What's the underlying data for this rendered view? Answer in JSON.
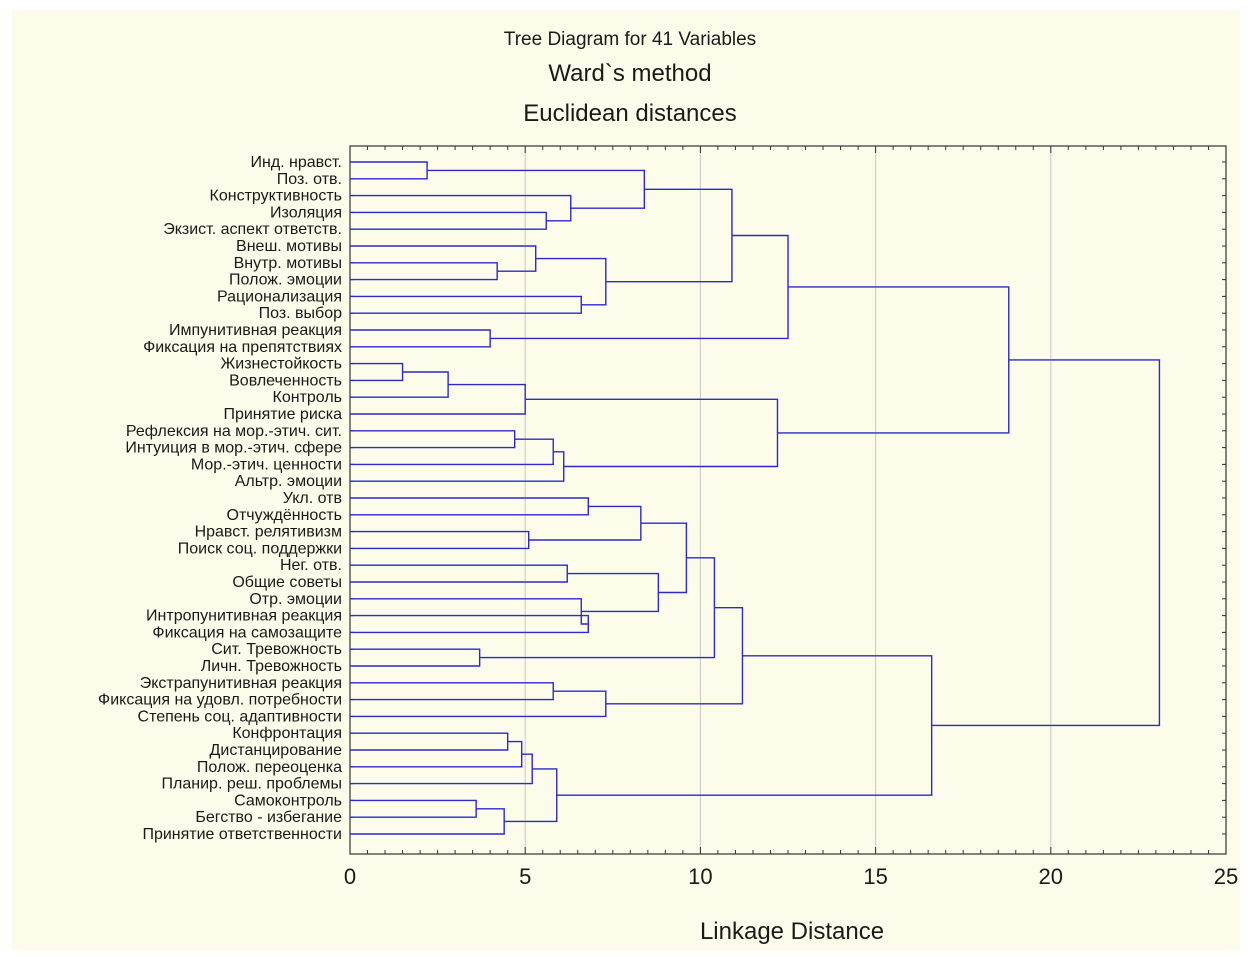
{
  "chart_data": {
    "type": "dendrogram",
    "title": "Tree Diagram for 41 Variables",
    "subtitle_1": "Ward`s method",
    "subtitle_2": "Euclidean distances",
    "xlabel": "Linkage Distance",
    "xlim": [
      0,
      25
    ],
    "xticks": [
      0,
      5,
      10,
      15,
      20,
      25
    ],
    "grid": true,
    "colors": {
      "tree": "#2b2bc8",
      "grid": "#c8c8c8",
      "frame": "#333333",
      "background": "#fdfbea"
    },
    "leaves": [
      "Инд. нравст.",
      "Поз. отв.",
      "Конструктивность",
      "Изоляция",
      "Экзист. аспект ответств.",
      "Внеш. мотивы",
      "Внутр. мотивы",
      "Полож. эмоции",
      "Рационализация",
      "Поз. выбор",
      "Импунитивная реакция",
      "Фиксация на препятствиях",
      "Жизнестойкость",
      "Вовлеченность",
      "Контроль",
      "Принятие риска",
      "Рефлексия на мор.-этич. сит.",
      "Интуиция в мор.-этич. сфере",
      "Мор.-этич. ценности",
      "Альтр. эмоции",
      "Укл. отв",
      "Отчуждённость",
      "Нравст. релятивизм",
      "Поиск соц. поддержки",
      "Нег. отв.",
      "Общие советы",
      "Отр. эмоции",
      "Интропунитивная реакция",
      "Фиксация на самозащите",
      "Сит. Тревожность",
      "Личн. Тревожность",
      "Экстрапунитивная реакция",
      "Фиксация на удовл. потребности",
      "Степень соц. адаптивности",
      "Конфронтация",
      "Дистанцирование",
      "Полож. переоценка",
      "Планир. реш. проблемы",
      "Самоконтроль",
      "Бегство - избегание",
      "Принятие ответственности"
    ],
    "merges": [
      [
        0,
        1,
        2.2
      ],
      [
        3,
        4,
        5.6
      ],
      [
        2,
        42,
        6.3
      ],
      [
        41,
        43,
        8.4
      ],
      [
        6,
        7,
        4.2
      ],
      [
        5,
        45,
        5.3
      ],
      [
        8,
        9,
        6.6
      ],
      [
        46,
        47,
        7.3
      ],
      [
        44,
        48,
        10.9
      ],
      [
        10,
        11,
        4.0
      ],
      [
        49,
        50,
        12.5
      ],
      [
        12,
        13,
        1.5
      ],
      [
        52,
        14,
        2.8
      ],
      [
        53,
        15,
        5.0
      ],
      [
        16,
        17,
        4.7
      ],
      [
        55,
        18,
        5.8
      ],
      [
        56,
        19,
        6.1
      ],
      [
        54,
        57,
        12.2
      ],
      [
        51,
        58,
        18.8
      ],
      [
        20,
        21,
        6.8
      ],
      [
        22,
        23,
        5.1
      ],
      [
        60,
        61,
        8.3
      ],
      [
        24,
        25,
        6.2
      ],
      [
        27,
        28,
        6.8
      ],
      [
        26,
        64,
        6.6
      ],
      [
        63,
        65,
        8.8
      ],
      [
        62,
        66,
        9.6
      ],
      [
        29,
        30,
        3.7
      ],
      [
        67,
        68,
        10.4
      ],
      [
        31,
        32,
        5.8
      ],
      [
        70,
        33,
        7.3
      ],
      [
        69,
        71,
        11.2
      ],
      [
        34,
        35,
        4.5
      ],
      [
        73,
        36,
        4.9
      ],
      [
        74,
        37,
        5.2
      ],
      [
        38,
        39,
        3.6
      ],
      [
        76,
        40,
        4.4
      ],
      [
        75,
        77,
        5.9
      ],
      [
        72,
        78,
        16.6
      ],
      [
        59,
        79,
        23.1
      ]
    ]
  }
}
